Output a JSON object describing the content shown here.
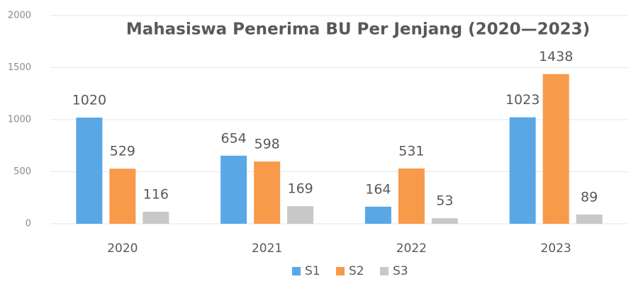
{
  "chart_data": {
    "type": "bar",
    "title": "Mahasiswa Penerima BU Per Jenjang (2020—2023)",
    "categories": [
      "2020",
      "2021",
      "2022",
      "2023"
    ],
    "series": [
      {
        "name": "S1",
        "color": "#5aa7e6",
        "values": [
          1020,
          654,
          164,
          1023
        ]
      },
      {
        "name": "S2",
        "color": "#f79a4a",
        "values": [
          529,
          598,
          531,
          1438
        ]
      },
      {
        "name": "S3",
        "color": "#c8c8c8",
        "values": [
          116,
          169,
          53,
          89
        ]
      }
    ],
    "ylim": [
      0,
      2000
    ],
    "yticks": [
      0,
      500,
      1000,
      1500,
      2000
    ],
    "grid": true,
    "legend": "bottom"
  }
}
